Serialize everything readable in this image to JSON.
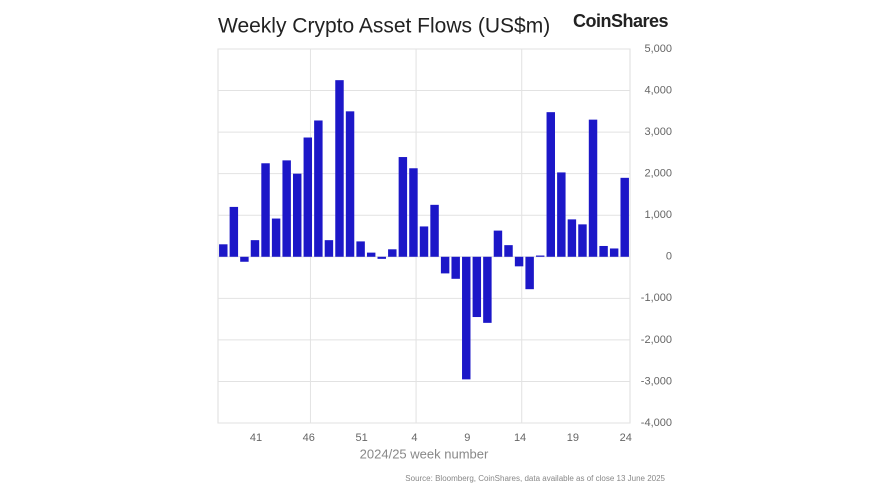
{
  "chart_data": {
    "type": "bar",
    "title": "Weekly Crypto Asset Flows (US$m)",
    "brand": "CoinShares",
    "x_label": "2024/25 week number",
    "source": "Source: Bloomberg, CoinShares, data available as of close 13 June 2025",
    "categories": [
      null,
      null,
      null,
      "41",
      null,
      null,
      null,
      null,
      "46",
      null,
      null,
      null,
      null,
      "51",
      null,
      null,
      null,
      null,
      "4",
      null,
      null,
      null,
      null,
      "9",
      null,
      null,
      null,
      null,
      "14",
      null,
      null,
      null,
      null,
      "19",
      null,
      null,
      null,
      null,
      "24"
    ],
    "values": [
      300,
      1200,
      -120,
      400,
      2250,
      920,
      2320,
      2000,
      2870,
      3280,
      400,
      4250,
      3500,
      370,
      100,
      -50,
      180,
      2400,
      2130,
      730,
      1250,
      -400,
      -530,
      -2950,
      -1450,
      -1590,
      630,
      280,
      -230,
      -780,
      30,
      3480,
      2030,
      900,
      780,
      3300,
      260,
      200,
      1900
    ],
    "color": "#1c17c8",
    "ylim": [
      -4000,
      5000
    ],
    "yticks": [
      {
        "value": -4000,
        "label": "-4,000"
      },
      {
        "value": -3000,
        "label": "-3,000"
      },
      {
        "value": -2000,
        "label": "-2,000"
      },
      {
        "value": -1000,
        "label": "-1,000"
      },
      0,
      {
        "value": 1000,
        "label": "1,000"
      },
      {
        "value": 2000,
        "label": "2,000"
      },
      {
        "value": 3000,
        "label": "3,000"
      },
      {
        "value": 4000,
        "label": "4,000"
      },
      {
        "value": 5000,
        "label": "5,000"
      }
    ],
    "grid": true
  }
}
